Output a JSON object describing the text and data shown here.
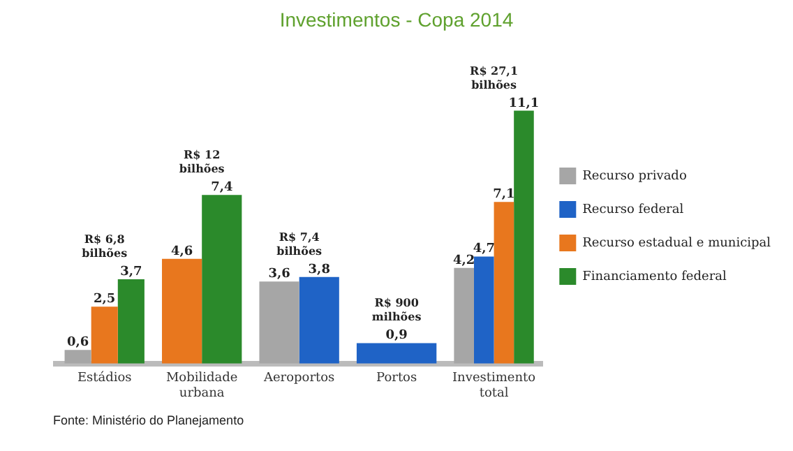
{
  "chart_data": {
    "type": "bar",
    "title": "Investimentos - Copa 2014",
    "categories": [
      "Estádios",
      "Mobilidade urbana",
      "Aeroportos",
      "Portos",
      "Investimento total"
    ],
    "series": [
      {
        "name": "Recurso privado",
        "color": "#a6a6a6",
        "values": [
          0.6,
          null,
          3.6,
          null,
          4.2
        ],
        "value_labels": [
          "0,6",
          null,
          "3,6",
          null,
          "4,2"
        ]
      },
      {
        "name": "Recurso federal",
        "color": "#1f63c6",
        "values": [
          null,
          null,
          3.8,
          0.9,
          4.7
        ],
        "value_labels": [
          null,
          null,
          "3,8",
          "0,9",
          "4,7"
        ]
      },
      {
        "name": "Recurso estadual e municipal",
        "color": "#e8771e",
        "values": [
          2.5,
          4.6,
          null,
          null,
          7.1
        ],
        "value_labels": [
          "2,5",
          "4,6",
          null,
          null,
          "7,1"
        ]
      },
      {
        "name": "Financiamento federal",
        "color": "#2b8a2b",
        "values": [
          3.7,
          7.4,
          null,
          null,
          11.1
        ],
        "value_labels": [
          "3,7",
          "7,4",
          null,
          null,
          "11,1"
        ]
      }
    ],
    "totals": [
      "R$ 6,8 bilhões",
      "R$ 12 bilhões",
      "R$ 7,4 bilhões",
      "R$ 900 milhões",
      "R$ 27,1 bilhões"
    ],
    "annotations": [
      "Fonte: Ministério do Planejamento"
    ],
    "legend": "right",
    "grid": false
  }
}
